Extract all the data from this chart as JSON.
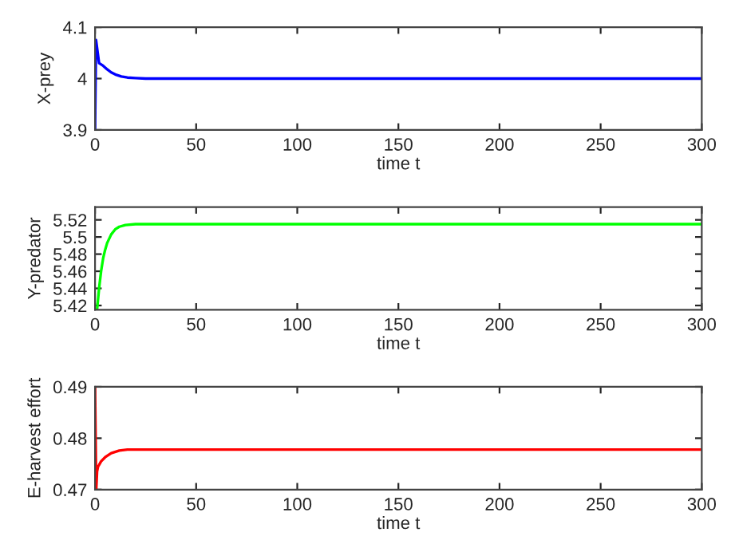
{
  "chart_data": [
    {
      "type": "line",
      "xlabel": "time t",
      "ylabel": "X-prey",
      "xlim": [
        0,
        300
      ],
      "xticks": [
        0,
        50,
        100,
        150,
        200,
        250,
        300
      ],
      "ylim": [
        3.9,
        4.1
      ],
      "yticks": [
        3.9,
        4,
        4.1
      ],
      "grid": false,
      "series": [
        {
          "color": "#0000ff",
          "x": [
            0,
            0.5,
            1,
            2,
            4,
            6,
            8,
            10,
            13,
            16,
            20,
            25,
            30,
            50,
            100,
            150,
            200,
            250,
            300
          ],
          "values": [
            3.9,
            4.075,
            4.06,
            4.03,
            4.025,
            4.018,
            4.012,
            4.008,
            4.004,
            4.002,
            4.001,
            4.0,
            4.0,
            4.0,
            4.0,
            4.0,
            4.0,
            4.0,
            4.0
          ]
        }
      ]
    },
    {
      "type": "line",
      "xlabel": "time t",
      "ylabel": "Y-predator",
      "xlim": [
        0,
        300
      ],
      "xticks": [
        0,
        50,
        100,
        150,
        200,
        250,
        300
      ],
      "ylim": [
        5.415,
        5.535
      ],
      "yticks": [
        5.42,
        5.44,
        5.46,
        5.48,
        5.5,
        5.52
      ],
      "grid": false,
      "series": [
        {
          "color": "#00ff00",
          "x": [
            1,
            2,
            3,
            4,
            5,
            6,
            8,
            10,
            12,
            15,
            20,
            25,
            50,
            100,
            150,
            200,
            250,
            300
          ],
          "values": [
            5.415,
            5.44,
            5.46,
            5.475,
            5.485,
            5.493,
            5.503,
            5.509,
            5.512,
            5.514,
            5.515,
            5.515,
            5.515,
            5.515,
            5.515,
            5.515,
            5.515,
            5.515
          ]
        }
      ]
    },
    {
      "type": "line",
      "xlabel": "time t",
      "ylabel": "E-harvest effort",
      "xlim": [
        0,
        300
      ],
      "xticks": [
        0,
        50,
        100,
        150,
        200,
        250,
        300
      ],
      "ylim": [
        0.47,
        0.49
      ],
      "yticks": [
        0.47,
        0.48,
        0.49
      ],
      "grid": false,
      "series": [
        {
          "color": "#ff0000",
          "x": [
            0,
            0.6,
            1,
            1.5,
            2,
            3,
            5,
            8,
            12,
            16,
            20,
            30,
            50,
            100,
            150,
            200,
            250,
            300
          ],
          "values": [
            0.49,
            0.47,
            0.4735,
            0.4745,
            0.4748,
            0.4755,
            0.4763,
            0.4771,
            0.4776,
            0.4778,
            0.4778,
            0.4778,
            0.4778,
            0.4778,
            0.4778,
            0.4778,
            0.4778,
            0.4778
          ]
        }
      ]
    }
  ]
}
